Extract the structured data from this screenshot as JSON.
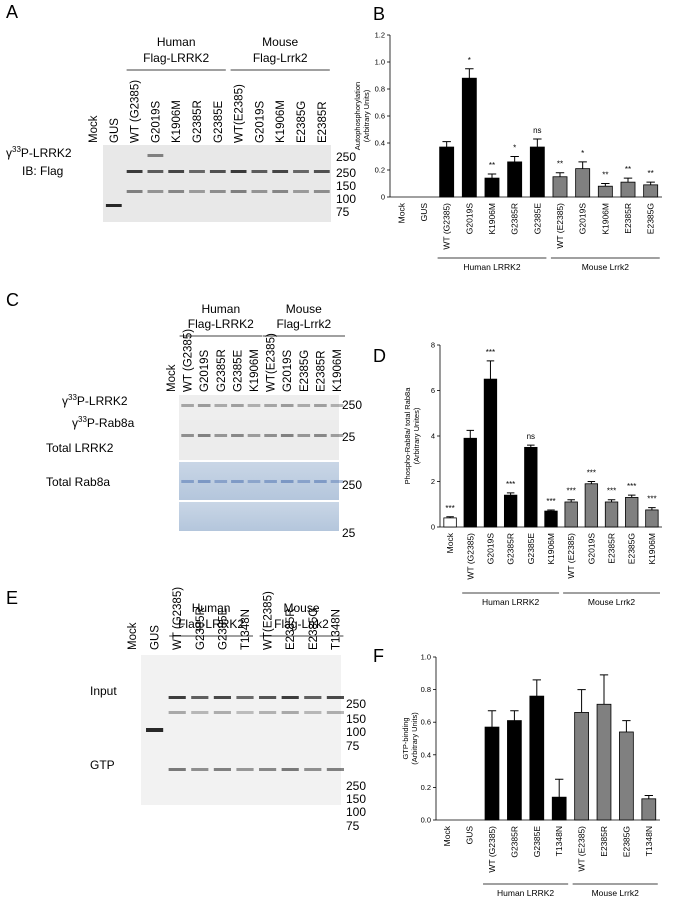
{
  "panels": [
    {
      "letter": "A",
      "groups": [
        [
          "Human",
          "Flag-LRRK2"
        ],
        [
          "Mouse",
          "Flag-Lrrk2"
        ]
      ],
      "lanes": [
        "Mock",
        "GUS",
        "WT (G2385)",
        "G2019S",
        "K1906M",
        "G2385R",
        "G2385E",
        "WT(E2385)",
        "G2019S",
        "K1906M",
        "E2385G",
        "E2385R"
      ],
      "rows": [
        {
          "pre": "γ",
          "sup": "33",
          "text": "P-LRRK2"
        },
        {
          "text": "IB: Flag"
        }
      ],
      "markers": [
        "250",
        "250",
        "150",
        "100",
        "75"
      ]
    },
    {
      "letter": "C",
      "groups": [
        [
          "Human",
          "Flag-LRRK2"
        ],
        [
          "Mouse",
          "Flag-Lrrk2"
        ]
      ],
      "lanes": [
        "Mock",
        "WT (G2385)",
        "G2019S",
        "G2385R",
        "G2385E",
        "K1906M",
        "WT(E2385)",
        "G2019S",
        "E2385G",
        "E2385R",
        "K1906M"
      ],
      "rows": [
        {
          "pre": "γ",
          "sup": "33",
          "text": "P-LRRK2"
        },
        {
          "pre": "γ",
          "sup": "33",
          "text": "P-Rab8a"
        },
        {
          "text": "Total LRRK2"
        },
        {
          "text": "Total Rab8a"
        }
      ],
      "markers": [
        "250",
        "25",
        "250",
        "25"
      ]
    },
    {
      "letter": "E",
      "groups": [
        [
          "Human",
          "Flag-LRRK2"
        ],
        [
          "Mouse",
          "Flag-Lrrk2"
        ]
      ],
      "lanes": [
        "Mock",
        "GUS",
        "WT (G2385)",
        "G2385R",
        "G2385E",
        "T1348N",
        "WT(E2385)",
        "E2385R",
        "E2385G",
        "T1348N"
      ],
      "rows": [
        {
          "text": "Input"
        },
        {
          "text": "GTP"
        }
      ],
      "markers": [
        "250",
        "150",
        "100",
        "75",
        "250",
        "150",
        "100",
        "75"
      ]
    }
  ],
  "chart_data": [
    {
      "type": "bar",
      "panel": "B",
      "y_label": [
        "Autophosphorylation",
        "(Arbitrary Units)"
      ],
      "categories": [
        "Mock",
        "GUS",
        "WT (G2385)",
        "G2019S",
        "K1906M",
        "G2385R",
        "G2385E",
        "WT (E2385)",
        "G2019S",
        "K1906M",
        "E2385R",
        "E2385G"
      ],
      "values": [
        0,
        0,
        0.37,
        0.88,
        0.14,
        0.26,
        0.37,
        0.15,
        0.21,
        0.08,
        0.11,
        0.09
      ],
      "errors": [
        0,
        0,
        0.04,
        0.07,
        0.03,
        0.04,
        0.06,
        0.03,
        0.05,
        0.02,
        0.03,
        0.02
      ],
      "annotations": [
        null,
        null,
        null,
        "*",
        "**",
        "*",
        "ns",
        "**",
        "*",
        "**",
        "**",
        "**"
      ],
      "colors": [
        "#000000",
        "#000000",
        "#000000",
        "#000000",
        "#000000",
        "#000000",
        "#000000",
        "#808080",
        "#808080",
        "#808080",
        "#808080",
        "#808080"
      ],
      "group_labels": [
        "Human LRRK2",
        "Mouse Lrrk2"
      ],
      "ylim": [
        0,
        1.2
      ],
      "yticks": [
        0,
        0.2,
        0.4,
        0.6,
        0.8,
        {
          "value": 1,
          "label": "1.0"
        },
        1.2
      ]
    },
    {
      "type": "bar",
      "panel": "D",
      "y_label": [
        "Phospho-Rab8a/ total Rab8a",
        "(Arbitrary Unites)"
      ],
      "categories": [
        "Mock",
        "WT (G2385)",
        "G2019S",
        "G2385R",
        "G2385E",
        "K1906M",
        "WT (E2385)",
        "G2019S",
        "E2385R",
        "E2385G",
        "K1906M"
      ],
      "values": [
        0.4,
        3.9,
        6.5,
        1.4,
        3.5,
        0.7,
        1.1,
        1.9,
        1.1,
        1.3,
        0.75
      ],
      "errors": [
        0.05,
        0.35,
        0.8,
        0.1,
        0.1,
        0.05,
        0.1,
        0.1,
        0.1,
        0.1,
        0.1
      ],
      "annotations": [
        "***",
        null,
        "***",
        "***",
        "ns",
        "***",
        "***",
        "***",
        "***",
        "***",
        "***"
      ],
      "colors": [
        "#ffffff",
        "#000000",
        "#000000",
        "#000000",
        "#000000",
        "#000000",
        "#808080",
        "#808080",
        "#808080",
        "#808080",
        "#808080"
      ],
      "group_labels": [
        "Human LRRK2",
        "Mouse Lrrk2"
      ],
      "ylim": [
        0,
        8
      ],
      "yticks": [
        0,
        2,
        4,
        6,
        8
      ]
    },
    {
      "type": "bar",
      "panel": "F",
      "y_label": [
        "GTP-binding",
        "(Arbitrary Units)"
      ],
      "categories": [
        "Mock",
        "GUS",
        "WT (G2385)",
        "G2385R",
        "G2385E",
        "T1348N",
        "WT (E2385)",
        "E2385R",
        "E2385G",
        "T1348N"
      ],
      "values": [
        0,
        0,
        0.57,
        0.61,
        0.76,
        0.14,
        0.66,
        0.71,
        0.54,
        0.13
      ],
      "errors": [
        0,
        0,
        0.1,
        0.06,
        0.1,
        0.11,
        0.14,
        0.18,
        0.07,
        0.02
      ],
      "colors": [
        "#000000",
        "#000000",
        "#000000",
        "#000000",
        "#000000",
        "#000000",
        "#808080",
        "#808080",
        "#808080",
        "#808080"
      ],
      "group_labels": [
        "Human LRRK2",
        "Mouse Lrrk2"
      ],
      "ylim": [
        0,
        1
      ],
      "yticks": [
        {
          "value": 0,
          "label": "0.0"
        },
        0.2,
        0.4,
        0.6,
        0.8,
        {
          "value": 1,
          "label": "1.0"
        }
      ]
    }
  ]
}
